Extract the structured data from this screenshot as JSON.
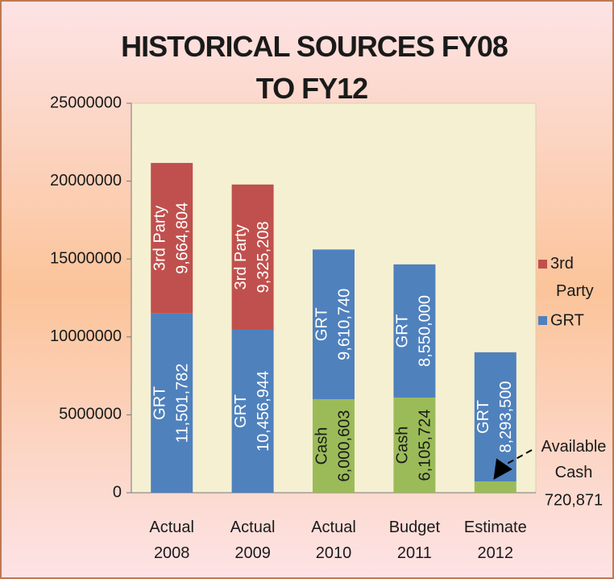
{
  "chart_data": {
    "type": "stacked_bar",
    "title": "HISTORICAL SOURCES FY08 TO FY12",
    "categories": [
      "Actual 2008",
      "Actual 2009",
      "Actual 2010",
      "Budget 2011",
      "Estimate 2012"
    ],
    "series": [
      {
        "name": "Cash",
        "color": "#9bbb59",
        "in_legend": false,
        "label_color": "#1a1a1a",
        "values": [
          null,
          null,
          6000603,
          6105724,
          720871
        ],
        "value_labels": [
          null,
          null,
          "6,000,603",
          "6,105,724",
          "720,871"
        ]
      },
      {
        "name": "GRT",
        "color": "#4f81bd",
        "in_legend": true,
        "label_color": "#ffffff",
        "values": [
          11501782,
          10456944,
          9610740,
          8550000,
          8293500
        ],
        "value_labels": [
          "11,501,782",
          "10,456,944",
          "9,610,740",
          "8,550,000",
          "8,293,500"
        ]
      },
      {
        "name": "3rd Party",
        "color": "#c0504d",
        "in_legend": true,
        "label_color": "#ffffff",
        "values": [
          9664804,
          9325208,
          null,
          null,
          null
        ],
        "value_labels": [
          "9,664,804",
          "9,325,208",
          null,
          null,
          null
        ]
      }
    ],
    "annotations": [
      {
        "text": "Available Cash",
        "series": 0,
        "index": 4
      }
    ],
    "ylim": [
      0,
      25000000
    ],
    "yticks": [
      0,
      5000000,
      10000000,
      15000000,
      20000000,
      25000000
    ],
    "legend": "right"
  }
}
